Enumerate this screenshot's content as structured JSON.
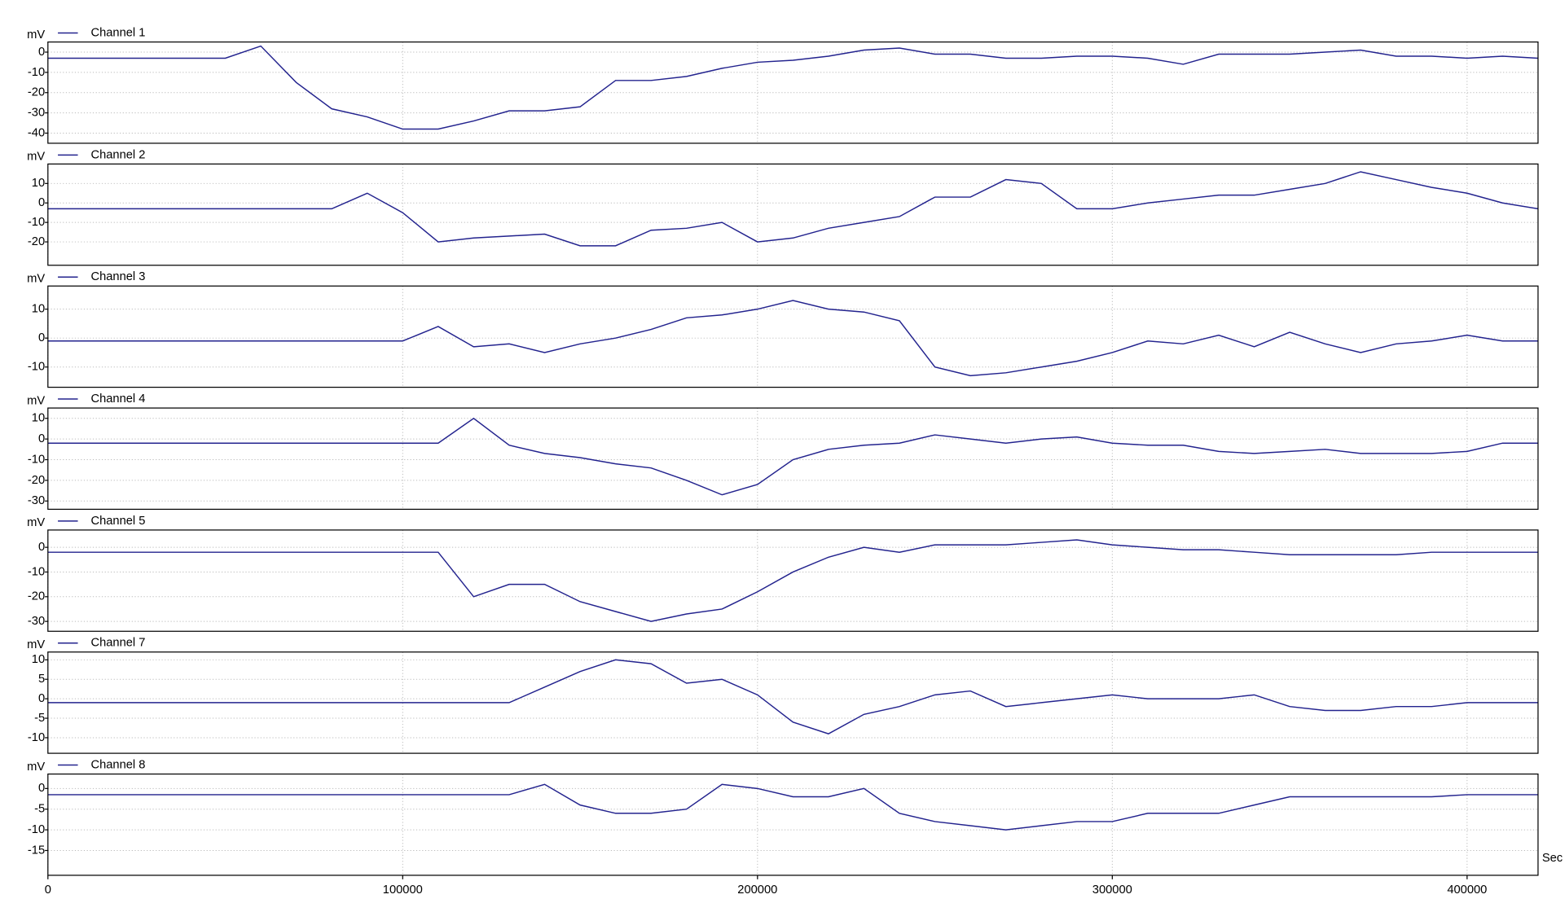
{
  "chart_data": [
    {
      "type": "line",
      "ylabel": "mV",
      "x": [
        0,
        10000,
        20000,
        30000,
        40000,
        50000,
        60000,
        70000,
        80000,
        90000,
        100000,
        110000,
        120000,
        130000,
        140000,
        150000,
        160000,
        170000,
        180000,
        190000,
        200000,
        210000,
        220000,
        230000,
        240000,
        250000,
        260000,
        270000,
        280000,
        290000,
        300000,
        310000,
        320000,
        330000,
        340000,
        350000,
        360000,
        370000,
        380000,
        390000,
        400000,
        410000,
        420000
      ],
      "xlim": [
        0,
        420000
      ],
      "xticks": [
        0,
        100000,
        200000,
        300000,
        400000
      ],
      "ylim": [
        -45,
        5
      ],
      "yticks": [
        0,
        -10,
        -20,
        -30,
        -40
      ],
      "grid": true,
      "series": [
        {
          "name": "Channel 1",
          "color": "#23238e",
          "values": [
            -3,
            -3,
            -3,
            -3,
            -3,
            -3,
            3,
            -15,
            -28,
            -32,
            -38,
            -38,
            -34,
            -29,
            -29,
            -27,
            -14,
            -14,
            -12,
            -8,
            -5,
            -4,
            -2,
            1,
            2,
            -1,
            -1,
            -3,
            -3,
            -2,
            -2,
            -3,
            -6,
            -1,
            -1,
            -1,
            0,
            1,
            -2,
            -2,
            -3,
            -2,
            -3
          ]
        }
      ]
    },
    {
      "type": "line",
      "ylabel": "mV",
      "x": [
        0,
        10000,
        20000,
        30000,
        40000,
        50000,
        60000,
        70000,
        80000,
        90000,
        100000,
        110000,
        120000,
        130000,
        140000,
        150000,
        160000,
        170000,
        180000,
        190000,
        200000,
        210000,
        220000,
        230000,
        240000,
        250000,
        260000,
        270000,
        280000,
        290000,
        300000,
        310000,
        320000,
        330000,
        340000,
        350000,
        360000,
        370000,
        380000,
        390000,
        400000,
        410000,
        420000
      ],
      "xlim": [
        0,
        420000
      ],
      "xticks": [
        0,
        100000,
        200000,
        300000,
        400000
      ],
      "ylim": [
        -32,
        20
      ],
      "yticks": [
        10,
        0,
        -10,
        -20
      ],
      "grid": true,
      "series": [
        {
          "name": "Channel 2",
          "color": "#23238e",
          "values": [
            -3,
            -3,
            -3,
            -3,
            -3,
            -3,
            -3,
            -3,
            -3,
            5,
            -5,
            -20,
            -18,
            -17,
            -16,
            -22,
            -22,
            -14,
            -13,
            -10,
            -20,
            -18,
            -13,
            -10,
            -7,
            3,
            3,
            12,
            10,
            -3,
            -3,
            0,
            2,
            4,
            4,
            7,
            10,
            16,
            12,
            8,
            5,
            0,
            -3
          ]
        }
      ]
    },
    {
      "type": "line",
      "ylabel": "mV",
      "x": [
        0,
        10000,
        20000,
        30000,
        40000,
        50000,
        60000,
        70000,
        80000,
        90000,
        100000,
        110000,
        120000,
        130000,
        140000,
        150000,
        160000,
        170000,
        180000,
        190000,
        200000,
        210000,
        220000,
        230000,
        240000,
        250000,
        260000,
        270000,
        280000,
        290000,
        300000,
        310000,
        320000,
        330000,
        340000,
        350000,
        360000,
        370000,
        380000,
        390000,
        400000,
        410000,
        420000
      ],
      "xlim": [
        0,
        420000
      ],
      "xticks": [
        0,
        100000,
        200000,
        300000,
        400000
      ],
      "ylim": [
        -17,
        18
      ],
      "yticks": [
        10,
        0,
        -10
      ],
      "grid": true,
      "series": [
        {
          "name": "Channel 3",
          "color": "#23238e",
          "values": [
            -1,
            -1,
            -1,
            -1,
            -1,
            -1,
            -1,
            -1,
            -1,
            -1,
            -1,
            4,
            -3,
            -2,
            -5,
            -2,
            0,
            3,
            7,
            8,
            10,
            13,
            10,
            9,
            6,
            -10,
            -13,
            -12,
            -10,
            -8,
            -5,
            -1,
            -2,
            1,
            -3,
            2,
            -2,
            -5,
            -2,
            -1,
            1,
            -1,
            -1
          ]
        }
      ]
    },
    {
      "type": "line",
      "ylabel": "mV",
      "x": [
        0,
        10000,
        20000,
        30000,
        40000,
        50000,
        60000,
        70000,
        80000,
        90000,
        100000,
        110000,
        120000,
        130000,
        140000,
        150000,
        160000,
        170000,
        180000,
        190000,
        200000,
        210000,
        220000,
        230000,
        240000,
        250000,
        260000,
        270000,
        280000,
        290000,
        300000,
        310000,
        320000,
        330000,
        340000,
        350000,
        360000,
        370000,
        380000,
        390000,
        400000,
        410000,
        420000
      ],
      "xlim": [
        0,
        420000
      ],
      "xticks": [
        0,
        100000,
        200000,
        300000,
        400000
      ],
      "ylim": [
        -34,
        15
      ],
      "yticks": [
        10,
        0,
        -10,
        -20,
        -30
      ],
      "grid": true,
      "series": [
        {
          "name": "Channel 4",
          "color": "#23238e",
          "values": [
            -2,
            -2,
            -2,
            -2,
            -2,
            -2,
            -2,
            -2,
            -2,
            -2,
            -2,
            -2,
            10,
            -3,
            -7,
            -9,
            -12,
            -14,
            -20,
            -27,
            -22,
            -10,
            -5,
            -3,
            -2,
            2,
            0,
            -2,
            0,
            1,
            -2,
            -3,
            -3,
            -6,
            -7,
            -6,
            -5,
            -7,
            -7,
            -7,
            -6,
            -2,
            -2
          ]
        }
      ]
    },
    {
      "type": "line",
      "ylabel": "mV",
      "x": [
        0,
        10000,
        20000,
        30000,
        40000,
        50000,
        60000,
        70000,
        80000,
        90000,
        100000,
        110000,
        120000,
        130000,
        140000,
        150000,
        160000,
        170000,
        180000,
        190000,
        200000,
        210000,
        220000,
        230000,
        240000,
        250000,
        260000,
        270000,
        280000,
        290000,
        300000,
        310000,
        320000,
        330000,
        340000,
        350000,
        360000,
        370000,
        380000,
        390000,
        400000,
        410000,
        420000
      ],
      "xlim": [
        0,
        420000
      ],
      "xticks": [
        0,
        100000,
        200000,
        300000,
        400000
      ],
      "ylim": [
        -34,
        7
      ],
      "yticks": [
        0,
        -10,
        -20,
        -30
      ],
      "grid": true,
      "series": [
        {
          "name": "Channel 5",
          "color": "#23238e",
          "values": [
            -2,
            -2,
            -2,
            -2,
            -2,
            -2,
            -2,
            -2,
            -2,
            -2,
            -2,
            -2,
            -20,
            -15,
            -15,
            -22,
            -26,
            -30,
            -27,
            -25,
            -18,
            -10,
            -4,
            0,
            -2,
            1,
            1,
            1,
            2,
            3,
            1,
            0,
            -1,
            -1,
            -2,
            -3,
            -3,
            -3,
            -3,
            -2,
            -2,
            -2,
            -2
          ]
        }
      ]
    },
    {
      "type": "line",
      "ylabel": "mV",
      "x": [
        0,
        10000,
        20000,
        30000,
        40000,
        50000,
        60000,
        70000,
        80000,
        90000,
        100000,
        110000,
        120000,
        130000,
        140000,
        150000,
        160000,
        170000,
        180000,
        190000,
        200000,
        210000,
        220000,
        230000,
        240000,
        250000,
        260000,
        270000,
        280000,
        290000,
        300000,
        310000,
        320000,
        330000,
        340000,
        350000,
        360000,
        370000,
        380000,
        390000,
        400000,
        410000,
        420000
      ],
      "xlim": [
        0,
        420000
      ],
      "xticks": [
        0,
        100000,
        200000,
        300000,
        400000
      ],
      "ylim": [
        -14,
        12
      ],
      "yticks": [
        10,
        5,
        0,
        -5,
        -10
      ],
      "grid": true,
      "series": [
        {
          "name": "Channel 7",
          "color": "#23238e",
          "values": [
            -1,
            -1,
            -1,
            -1,
            -1,
            -1,
            -1,
            -1,
            -1,
            -1,
            -1,
            -1,
            -1,
            -1,
            3,
            7,
            10,
            9,
            4,
            5,
            1,
            -6,
            -9,
            -4,
            -2,
            1,
            2,
            -2,
            -1,
            0,
            1,
            0,
            0,
            0,
            1,
            -2,
            -3,
            -3,
            -2,
            -2,
            -1,
            -1,
            -1
          ]
        }
      ]
    },
    {
      "type": "line",
      "ylabel": "mV",
      "xlabel": "Sec",
      "x": [
        0,
        10000,
        20000,
        30000,
        40000,
        50000,
        60000,
        70000,
        80000,
        90000,
        100000,
        110000,
        120000,
        130000,
        140000,
        150000,
        160000,
        170000,
        180000,
        190000,
        200000,
        210000,
        220000,
        230000,
        240000,
        250000,
        260000,
        270000,
        280000,
        290000,
        300000,
        310000,
        320000,
        330000,
        340000,
        350000,
        360000,
        370000,
        380000,
        390000,
        400000,
        410000,
        420000
      ],
      "xlim": [
        0,
        420000
      ],
      "xticks": [
        0,
        100000,
        200000,
        300000,
        400000
      ],
      "ylim": [
        -21,
        3.5
      ],
      "yticks": [
        0,
        -5,
        -10,
        -15
      ],
      "grid": true,
      "series": [
        {
          "name": "Channel 8",
          "color": "#23238e",
          "values": [
            -1.5,
            -1.5,
            -1.5,
            -1.5,
            -1.5,
            -1.5,
            -1.5,
            -1.5,
            -1.5,
            -1.5,
            -1.5,
            -1.5,
            -1.5,
            -1.5,
            1,
            -4,
            -6,
            -6,
            -5,
            1,
            0,
            -2,
            -2,
            0,
            -6,
            -8,
            -9,
            -10,
            -9,
            -8,
            -8,
            -6,
            -6,
            -6,
            -4,
            -2,
            -2,
            -2,
            -2,
            -2,
            -1.5,
            -1.5,
            -1.5
          ]
        }
      ]
    }
  ]
}
